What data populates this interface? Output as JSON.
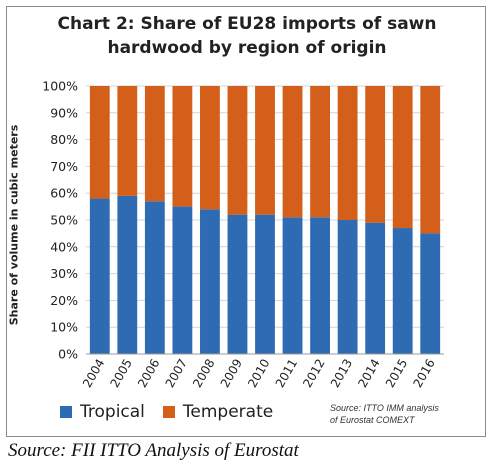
{
  "chart_data": {
    "type": "bar",
    "stacked": true,
    "percent": true,
    "title_line1": "Chart 2: Share of EU28 imports of sawn",
    "title_line2": "hardwood by region of origin",
    "ylabel": "Share of volume in cubic meters",
    "ylim": [
      0,
      100
    ],
    "yticks": [
      "0%",
      "10%",
      "20%",
      "30%",
      "40%",
      "50%",
      "60%",
      "70%",
      "80%",
      "90%",
      "100%"
    ],
    "categories": [
      "2004",
      "2005",
      "2006",
      "2007",
      "2008",
      "2009",
      "2010",
      "2011",
      "2012",
      "2013",
      "2014",
      "2015",
      "2016"
    ],
    "series": [
      {
        "name": "Tropical",
        "color": "#2e6bb3",
        "values": [
          58,
          59,
          57,
          55,
          54,
          52,
          52,
          51,
          51,
          50,
          49,
          47,
          45
        ]
      },
      {
        "name": "Temperate",
        "color": "#d35f1a",
        "values": [
          42,
          41,
          43,
          45,
          46,
          48,
          48,
          49,
          49,
          50,
          51,
          53,
          55
        ]
      }
    ],
    "grid": true,
    "legend_position": "bottom-left"
  },
  "source_inner_line1": "Source: ITTO IMM analysis",
  "source_inner_line2": "of Eurostat COMEXT",
  "source_outer": "Source: FII ITTO Analysis of Eurostat"
}
